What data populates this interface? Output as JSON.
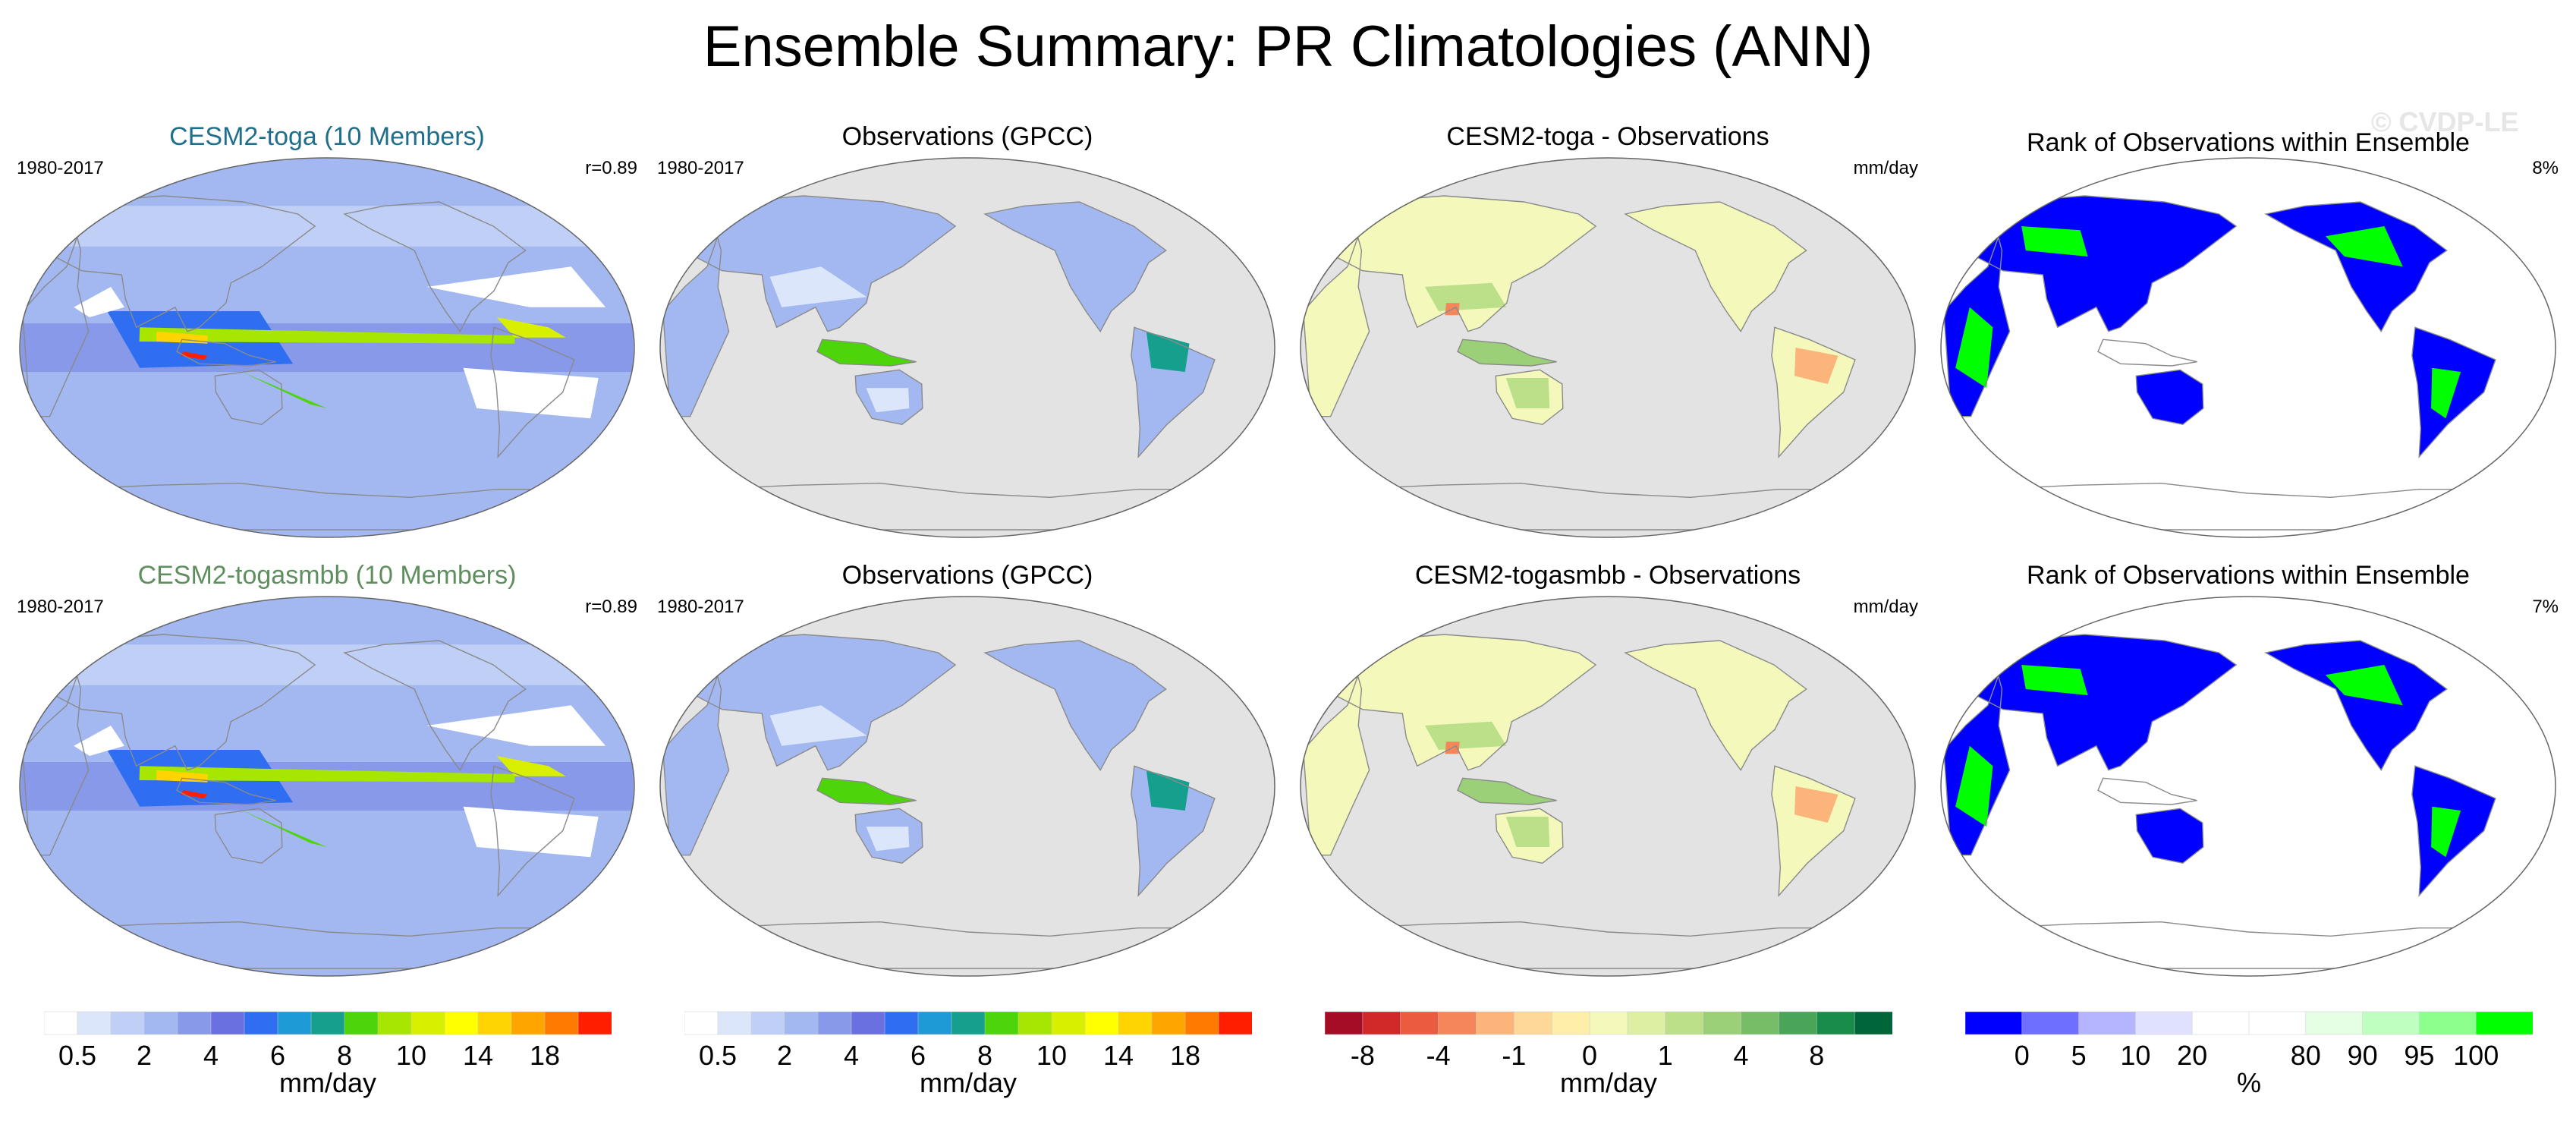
{
  "title": "Ensemble Summary: PR Climatologies (ANN)",
  "watermark": "© CVDP-LE",
  "colors": {
    "title_toga": "#1f6e8c",
    "title_togasmbb": "#5f8f5f",
    "land_gray": "#e3e3e3",
    "coast": "#8a8a8a"
  },
  "chart_data": [
    {
      "type": "heatmap",
      "row": 1,
      "col": 1,
      "kind": "model",
      "title": "CESM2-toga (10 Members)",
      "left_label": "1980-2017",
      "right_label": "r=0.89",
      "projection": "robinson"
    },
    {
      "type": "heatmap",
      "row": 1,
      "col": 2,
      "kind": "obs",
      "title": "Observations (GPCC)",
      "left_label": "1980-2017",
      "right_label": "",
      "projection": "robinson"
    },
    {
      "type": "heatmap",
      "row": 1,
      "col": 3,
      "kind": "diff",
      "title": "CESM2-toga - Observations",
      "left_label": "",
      "right_label": "mm/day",
      "projection": "robinson"
    },
    {
      "type": "heatmap",
      "row": 1,
      "col": 4,
      "kind": "rank",
      "title": "Rank of Observations within Ensemble",
      "left_label": "",
      "right_label": "8%",
      "projection": "robinson"
    },
    {
      "type": "heatmap",
      "row": 2,
      "col": 1,
      "kind": "model",
      "title": "CESM2-togasmbb (10 Members)",
      "left_label": "1980-2017",
      "right_label": "r=0.89",
      "projection": "robinson"
    },
    {
      "type": "heatmap",
      "row": 2,
      "col": 2,
      "kind": "obs",
      "title": "Observations (GPCC)",
      "left_label": "1980-2017",
      "right_label": "",
      "projection": "robinson"
    },
    {
      "type": "heatmap",
      "row": 2,
      "col": 3,
      "kind": "diff",
      "title": "CESM2-togasmbb - Observations",
      "left_label": "",
      "right_label": "mm/day",
      "projection": "robinson"
    },
    {
      "type": "heatmap",
      "row": 2,
      "col": 4,
      "kind": "rank",
      "title": "Rank of Observations within Ensemble",
      "left_label": "",
      "right_label": "7%",
      "projection": "robinson"
    }
  ],
  "colorbars": [
    {
      "unit": "mm/day",
      "colors": [
        "#ffffff",
        "#dce6fa",
        "#bfcff5",
        "#a3b8f0",
        "#8799e8",
        "#6a70e0",
        "#2f6ef0",
        "#1e9ad6",
        "#14a08c",
        "#4ed40a",
        "#a6e600",
        "#d8f000",
        "#ffff00",
        "#ffd400",
        "#ffa500",
        "#ff7a00",
        "#ff1e00"
      ],
      "ticks": [
        "0.5",
        "2",
        "4",
        "6",
        "8",
        "10",
        "14",
        "18"
      ],
      "tick_positions": [
        1,
        3,
        5,
        7,
        9,
        11,
        13,
        15
      ]
    },
    {
      "unit": "mm/day",
      "colors": [
        "#ffffff",
        "#dce6fa",
        "#bfcff5",
        "#a3b8f0",
        "#8799e8",
        "#6a70e0",
        "#2f6ef0",
        "#1e9ad6",
        "#14a08c",
        "#4ed40a",
        "#a6e600",
        "#d8f000",
        "#ffff00",
        "#ffd400",
        "#ffa500",
        "#ff7a00",
        "#ff1e00"
      ],
      "ticks": [
        "0.5",
        "2",
        "4",
        "6",
        "8",
        "10",
        "14",
        "18"
      ],
      "tick_positions": [
        1,
        3,
        5,
        7,
        9,
        11,
        13,
        15
      ]
    },
    {
      "unit": "mm/day",
      "colors": [
        "#a50d26",
        "#d1282a",
        "#ea5b3f",
        "#f5865a",
        "#fbb479",
        "#fed898",
        "#fdeeaa",
        "#f4f8bb",
        "#dcefa3",
        "#bce089",
        "#9cd078",
        "#77bd68",
        "#4aa558",
        "#188c48",
        "#01653a"
      ],
      "ticks": [
        "-8",
        "-4",
        "-1",
        "0",
        "1",
        "4",
        "8"
      ],
      "tick_positions": [
        1,
        3,
        5,
        7,
        9,
        11,
        13
      ]
    },
    {
      "unit": "%",
      "colors": [
        "#0000ff",
        "#6e6eff",
        "#b4b4ff",
        "#e0e0ff",
        "#ffffff",
        "#ffffff",
        "#e4ffe4",
        "#bfffbf",
        "#8cff8c",
        "#00ff00"
      ],
      "ticks": [
        "0",
        "5",
        "10",
        "20",
        "80",
        "90",
        "95",
        "100"
      ],
      "tick_positions": [
        1,
        2,
        3,
        4,
        6,
        7,
        8,
        9
      ]
    }
  ]
}
